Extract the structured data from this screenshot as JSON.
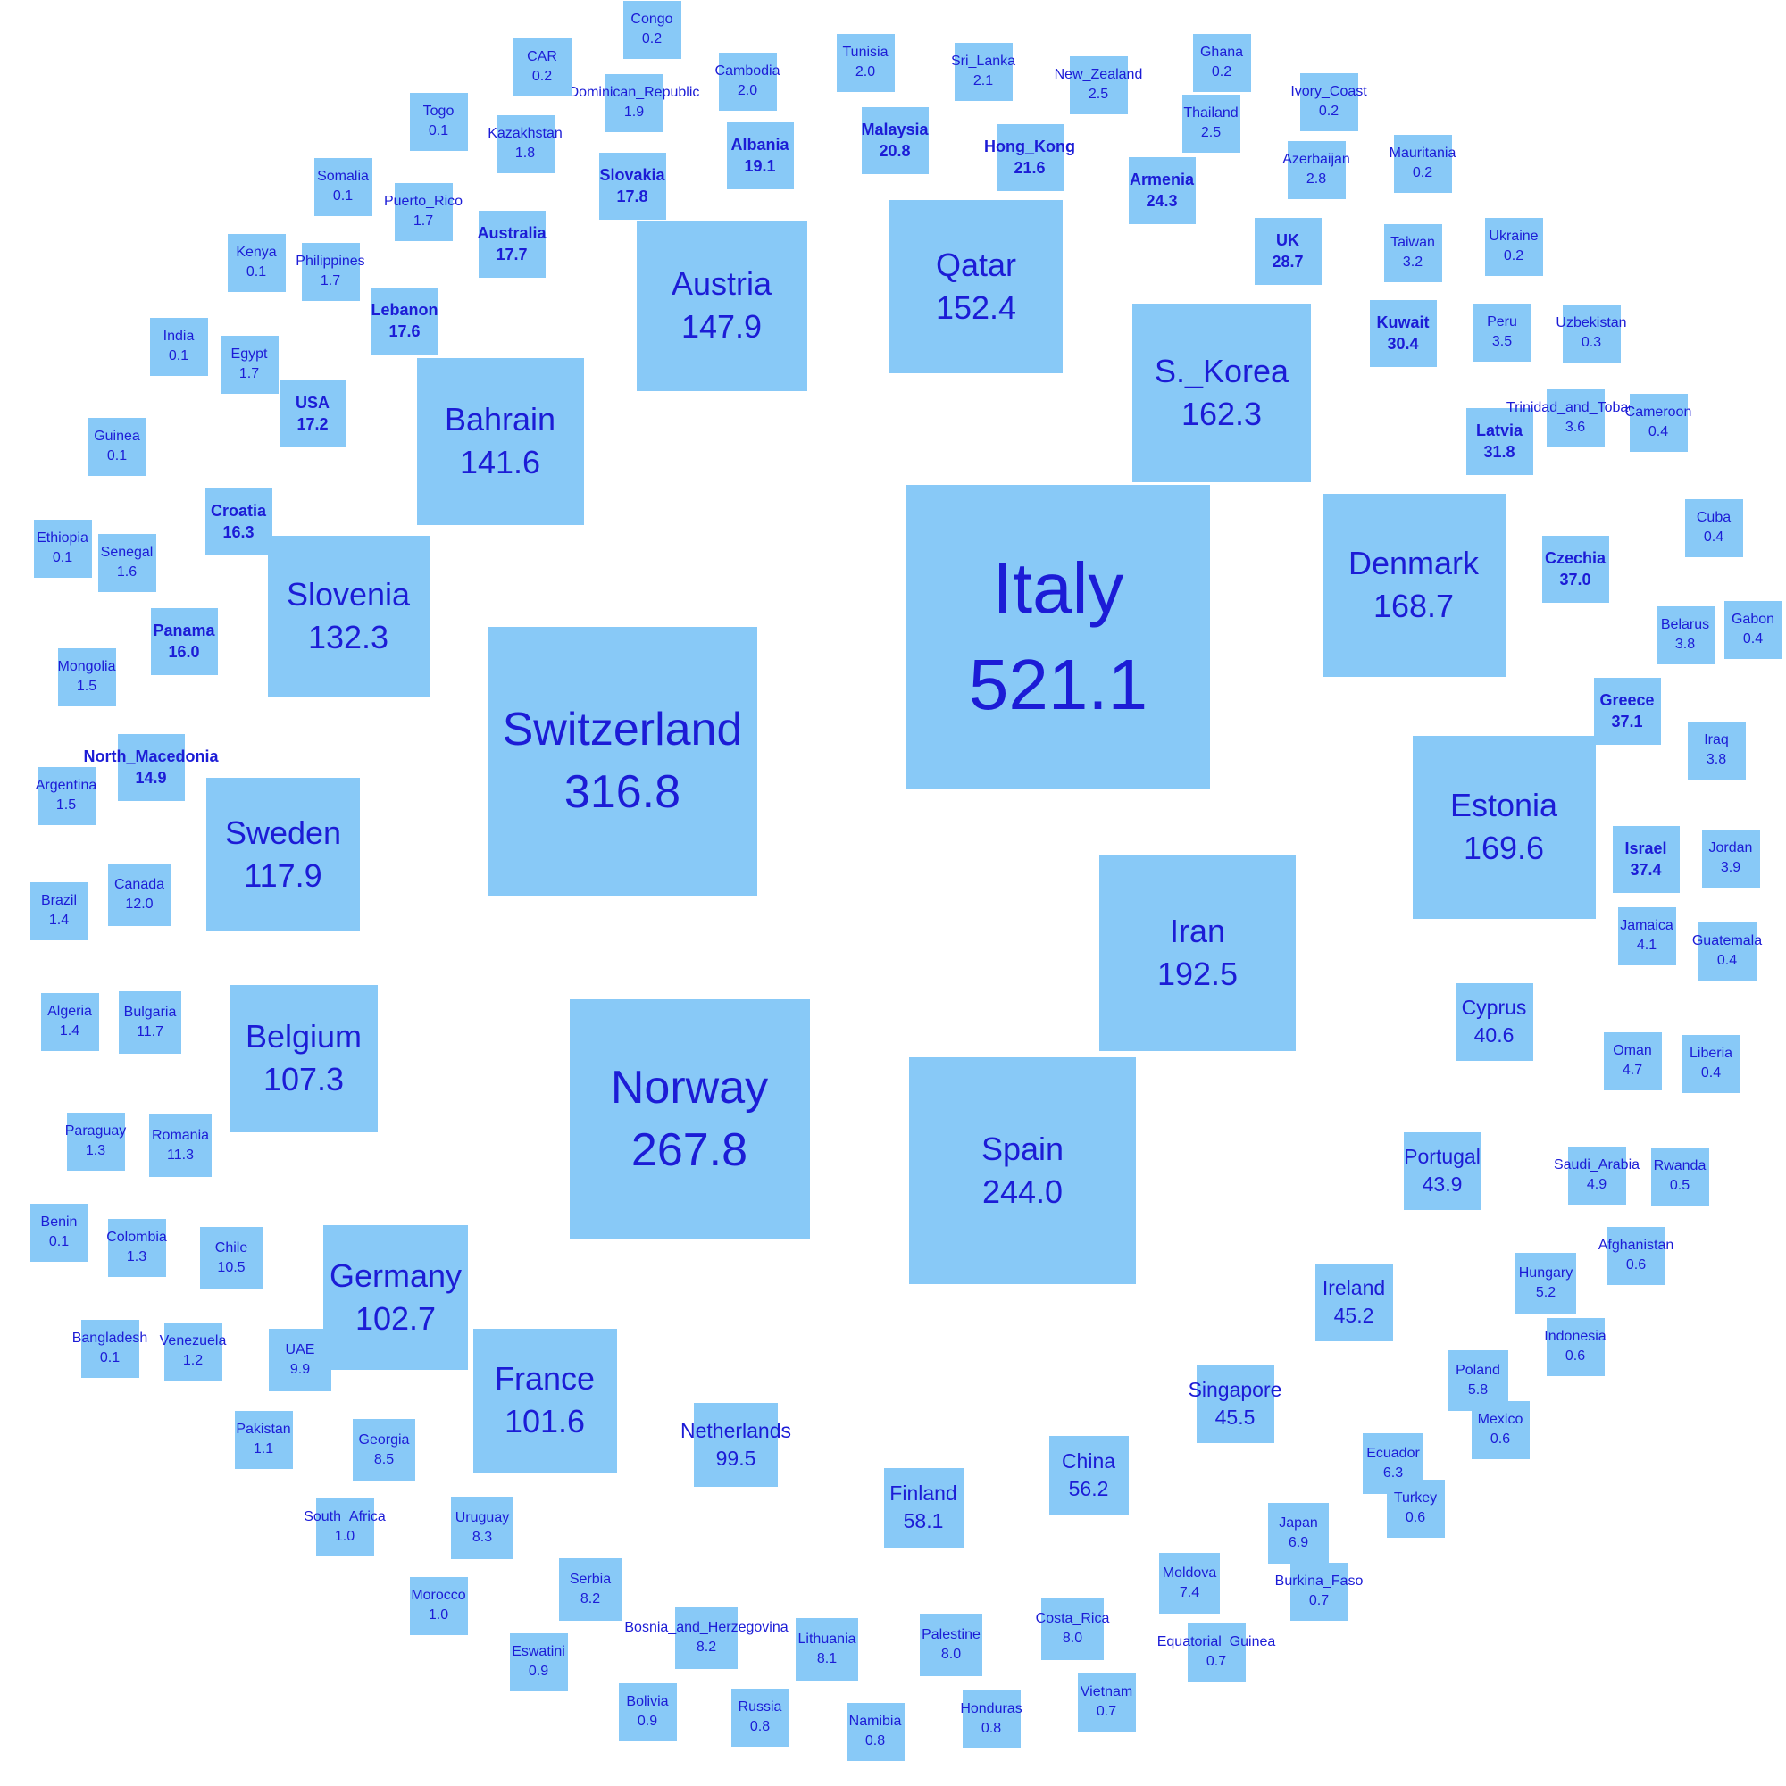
{
  "chart_data": {
    "type": "bubble-squares",
    "title": "",
    "colors": {
      "tile": "#88c9f7",
      "text": "#1c1cd6"
    },
    "countries": [
      {
        "name": "Italy",
        "value": "521.1"
      },
      {
        "name": "Switzerland",
        "value": "316.8"
      },
      {
        "name": "Norway",
        "value": "267.8"
      },
      {
        "name": "Spain",
        "value": "244.0"
      },
      {
        "name": "Iran",
        "value": "192.5"
      },
      {
        "name": "Estonia",
        "value": "169.6"
      },
      {
        "name": "Denmark",
        "value": "168.7"
      },
      {
        "name": "S._Korea",
        "value": "162.3"
      },
      {
        "name": "Qatar",
        "value": "152.4"
      },
      {
        "name": "Austria",
        "value": "147.9"
      },
      {
        "name": "Bahrain",
        "value": "141.6"
      },
      {
        "name": "Slovenia",
        "value": "132.3"
      },
      {
        "name": "Sweden",
        "value": "117.9"
      },
      {
        "name": "Belgium",
        "value": "107.3"
      },
      {
        "name": "Germany",
        "value": "102.7"
      },
      {
        "name": "France",
        "value": "101.6"
      },
      {
        "name": "Netherlands",
        "value": "99.5"
      },
      {
        "name": "Finland",
        "value": "58.1"
      },
      {
        "name": "China",
        "value": "56.2"
      },
      {
        "name": "Singapore",
        "value": "45.5"
      },
      {
        "name": "Ireland",
        "value": "45.2"
      },
      {
        "name": "Portugal",
        "value": "43.9"
      },
      {
        "name": "Cyprus",
        "value": "40.6"
      },
      {
        "name": "Israel",
        "value": "37.4"
      },
      {
        "name": "Greece",
        "value": "37.1"
      },
      {
        "name": "Czechia",
        "value": "37.0"
      },
      {
        "name": "Latvia",
        "value": "31.8"
      },
      {
        "name": "Kuwait",
        "value": "30.4"
      },
      {
        "name": "UK",
        "value": "28.7"
      },
      {
        "name": "Armenia",
        "value": "24.3"
      },
      {
        "name": "Hong_Kong",
        "value": "21.6"
      },
      {
        "name": "Malaysia",
        "value": "20.8"
      },
      {
        "name": "Albania",
        "value": "19.1"
      },
      {
        "name": "Slovakia",
        "value": "17.8"
      },
      {
        "name": "Australia",
        "value": "17.7"
      },
      {
        "name": "Lebanon",
        "value": "17.6"
      },
      {
        "name": "USA",
        "value": "17.2"
      },
      {
        "name": "Croatia",
        "value": "16.3"
      },
      {
        "name": "Panama",
        "value": "16.0"
      },
      {
        "name": "North_Macedonia",
        "value": "14.9"
      },
      {
        "name": "Canada",
        "value": "12.0"
      },
      {
        "name": "Bulgaria",
        "value": "11.7"
      },
      {
        "name": "Romania",
        "value": "11.3"
      },
      {
        "name": "Chile",
        "value": "10.5"
      },
      {
        "name": "UAE",
        "value": "9.9"
      },
      {
        "name": "Georgia",
        "value": "8.5"
      },
      {
        "name": "Uruguay",
        "value": "8.3"
      },
      {
        "name": "Serbia",
        "value": "8.2"
      },
      {
        "name": "Bosnia_and_Herzegovina",
        "value": "8.2"
      },
      {
        "name": "Lithuania",
        "value": "8.1"
      },
      {
        "name": "Palestine",
        "value": "8.0"
      },
      {
        "name": "Costa_Rica",
        "value": "8.0"
      },
      {
        "name": "Moldova",
        "value": "7.4"
      },
      {
        "name": "Japan",
        "value": "6.9"
      },
      {
        "name": "Ecuador",
        "value": "6.3"
      },
      {
        "name": "Poland",
        "value": "5.8"
      },
      {
        "name": "Hungary",
        "value": "5.2"
      },
      {
        "name": "Saudi_Arabia",
        "value": "4.9"
      },
      {
        "name": "Oman",
        "value": "4.7"
      },
      {
        "name": "Jamaica",
        "value": "4.1"
      },
      {
        "name": "Jordan",
        "value": "3.9"
      },
      {
        "name": "Belarus",
        "value": "3.8"
      },
      {
        "name": "Iraq",
        "value": "3.8"
      },
      {
        "name": "Trinidad_and_Tobago",
        "value": "3.6"
      },
      {
        "name": "Peru",
        "value": "3.5"
      },
      {
        "name": "Taiwan",
        "value": "3.2"
      },
      {
        "name": "Azerbaijan",
        "value": "2.8"
      },
      {
        "name": "New_Zealand",
        "value": "2.5"
      },
      {
        "name": "Thailand",
        "value": "2.5"
      },
      {
        "name": "Sri_Lanka",
        "value": "2.1"
      },
      {
        "name": "Tunisia",
        "value": "2.0"
      },
      {
        "name": "Cambodia",
        "value": "2.0"
      },
      {
        "name": "Dominican_Republic",
        "value": "1.9"
      },
      {
        "name": "Kazakhstan",
        "value": "1.8"
      },
      {
        "name": "Puerto_Rico",
        "value": "1.7"
      },
      {
        "name": "Philippines",
        "value": "1.7"
      },
      {
        "name": "Egypt",
        "value": "1.7"
      },
      {
        "name": "Senegal",
        "value": "1.6"
      },
      {
        "name": "Mongolia",
        "value": "1.5"
      },
      {
        "name": "Argentina",
        "value": "1.5"
      },
      {
        "name": "Brazil",
        "value": "1.4"
      },
      {
        "name": "Algeria",
        "value": "1.4"
      },
      {
        "name": "Paraguay",
        "value": "1.3"
      },
      {
        "name": "Colombia",
        "value": "1.3"
      },
      {
        "name": "Venezuela",
        "value": "1.2"
      },
      {
        "name": "Pakistan",
        "value": "1.1"
      },
      {
        "name": "South_Africa",
        "value": "1.0"
      },
      {
        "name": "Morocco",
        "value": "1.0"
      },
      {
        "name": "Eswatini",
        "value": "0.9"
      },
      {
        "name": "Bolivia",
        "value": "0.9"
      },
      {
        "name": "Russia",
        "value": "0.8"
      },
      {
        "name": "Namibia",
        "value": "0.8"
      },
      {
        "name": "Honduras",
        "value": "0.8"
      },
      {
        "name": "Vietnam",
        "value": "0.7"
      },
      {
        "name": "Equatorial_Guinea",
        "value": "0.7"
      },
      {
        "name": "Burkina_Faso",
        "value": "0.7"
      },
      {
        "name": "Turkey",
        "value": "0.6"
      },
      {
        "name": "Mexico",
        "value": "0.6"
      },
      {
        "name": "Indonesia",
        "value": "0.6"
      },
      {
        "name": "Afghanistan",
        "value": "0.6"
      },
      {
        "name": "Rwanda",
        "value": "0.5"
      },
      {
        "name": "Liberia",
        "value": "0.4"
      },
      {
        "name": "Guatemala",
        "value": "0.4"
      },
      {
        "name": "Gabon",
        "value": "0.4"
      },
      {
        "name": "Cuba",
        "value": "0.4"
      },
      {
        "name": "Cameroon",
        "value": "0.4"
      },
      {
        "name": "Uzbekistan",
        "value": "0.3"
      },
      {
        "name": "Ukraine",
        "value": "0.2"
      },
      {
        "name": "Mauritania",
        "value": "0.2"
      },
      {
        "name": "Ivory_Coast",
        "value": "0.2"
      },
      {
        "name": "Ghana",
        "value": "0.2"
      },
      {
        "name": "Congo",
        "value": "0.2"
      },
      {
        "name": "CAR",
        "value": "0.2"
      },
      {
        "name": "Togo",
        "value": "0.1"
      },
      {
        "name": "Somalia",
        "value": "0.1"
      },
      {
        "name": "Kenya",
        "value": "0.1"
      },
      {
        "name": "India",
        "value": "0.1"
      },
      {
        "name": "Guinea",
        "value": "0.1"
      },
      {
        "name": "Ethiopia",
        "value": "0.1"
      },
      {
        "name": "Benin",
        "value": "0.1"
      },
      {
        "name": "Bangladesh",
        "value": "0.1"
      }
    ]
  }
}
